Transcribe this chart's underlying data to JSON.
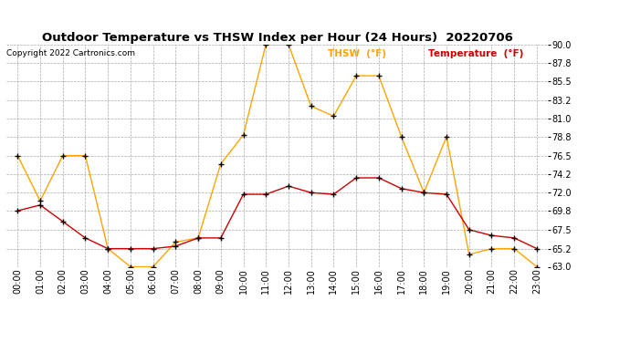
{
  "title": "Outdoor Temperature vs THSW Index per Hour (24 Hours)  20220706",
  "copyright": "Copyright 2022 Cartronics.com",
  "legend_thsw": "THSW  (°F)",
  "legend_temp": "Temperature  (°F)",
  "hours": [
    0,
    1,
    2,
    3,
    4,
    5,
    6,
    7,
    8,
    9,
    10,
    11,
    12,
    13,
    14,
    15,
    16,
    17,
    18,
    19,
    20,
    21,
    22,
    23
  ],
  "thsw": [
    76.5,
    71.0,
    76.5,
    76.5,
    65.2,
    63.0,
    63.0,
    66.0,
    66.5,
    75.5,
    79.0,
    90.0,
    90.0,
    82.5,
    81.3,
    86.2,
    86.2,
    78.8,
    72.0,
    78.8,
    64.5,
    65.2,
    65.2,
    63.0
  ],
  "temperature": [
    69.8,
    70.5,
    68.5,
    66.5,
    65.2,
    65.2,
    65.2,
    65.5,
    66.5,
    66.5,
    71.8,
    71.8,
    72.8,
    72.0,
    71.8,
    73.8,
    73.8,
    72.5,
    72.0,
    71.8,
    67.5,
    66.8,
    66.5,
    65.2
  ],
  "ylim_min": 63.0,
  "ylim_max": 90.0,
  "yticks": [
    63.0,
    65.2,
    67.5,
    69.8,
    72.0,
    74.2,
    76.5,
    78.8,
    81.0,
    83.2,
    85.5,
    87.8,
    90.0
  ],
  "thsw_color": "#FFA500",
  "temp_color": "#CC0000",
  "title_color": "#000000",
  "copyright_color": "#000000",
  "legend_thsw_color": "#FFA500",
  "legend_temp_color": "#CC0000",
  "background_color": "#ffffff",
  "grid_color": "#aaaaaa"
}
